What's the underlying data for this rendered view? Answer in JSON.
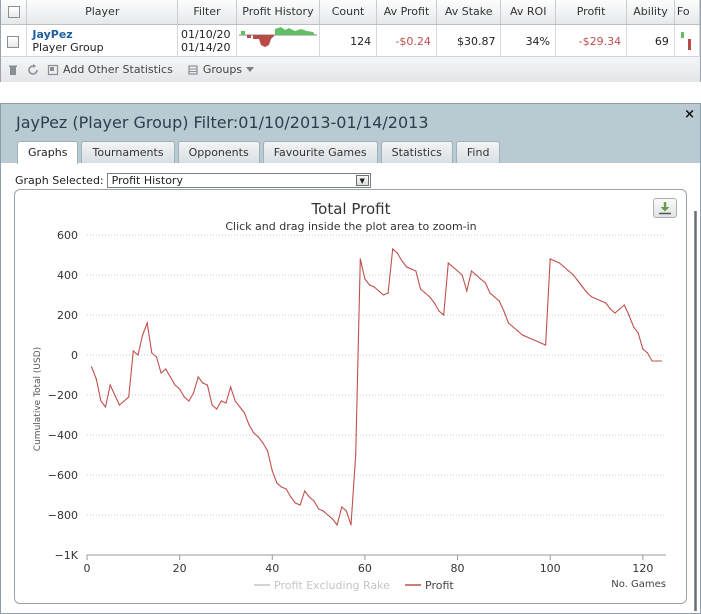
{
  "grid": {
    "headers": {
      "player": "Player",
      "filter": "Filter",
      "profit_history": "Profit History",
      "count": "Count",
      "av_profit": "Av Profit",
      "av_stake": "Av Stake",
      "av_roi": "Av ROI",
      "profit": "Profit",
      "ability": "Ability",
      "form": "Fo"
    },
    "row": {
      "player_name": "JayPez",
      "player_type": "Player Group",
      "filter_start": "01/10/20",
      "filter_end": "01/14/20",
      "count": "124",
      "av_profit": "-$0.24",
      "av_stake": "$30.87",
      "av_roi": "34%",
      "profit": "-$29.34",
      "ability": "69"
    },
    "toolbar": {
      "add_stats": "Add Other Statistics",
      "groups": "Groups"
    }
  },
  "panel": {
    "title": "JayPez (Player Group) Filter:01/10/2013-01/14/2013",
    "close_glyph": "×",
    "tabs": [
      "Graphs",
      "Tournaments",
      "Opponents",
      "Favourite Games",
      "Statistics",
      "Find"
    ],
    "active_tab": 0,
    "graph_selected_label": "Graph Selected:",
    "graph_selected_value": "Profit History",
    "select_arrow": "▼"
  },
  "colors": {
    "profit": "#c0504d",
    "profit_ex_rake": "#c5c5c5",
    "header_bg": "#b9cad3",
    "spark_green": "#63be63",
    "spark_red": "#b94a48"
  },
  "chart_data": {
    "type": "line",
    "title": "Total Profit",
    "subtitle": "Click and drag inside the plot area to zoom-in",
    "ylabel": "Cumulative Total (USD)",
    "xlabel": "No. Games",
    "xlim": [
      0,
      125
    ],
    "ylim": [
      -1000,
      600
    ],
    "yticks": [
      600,
      400,
      200,
      0,
      -200,
      -400,
      -600,
      -800,
      -1000
    ],
    "ytick_labels": [
      "600",
      "400",
      "200",
      "0",
      "−200",
      "−400",
      "−600",
      "−800",
      "−1K"
    ],
    "xticks": [
      0,
      20,
      40,
      60,
      80,
      100,
      120
    ],
    "grid": true,
    "legend_position": "bottom",
    "series": [
      {
        "name": "Profit Excluding Rake",
        "values": []
      },
      {
        "name": "Profit",
        "x": [
          1,
          2,
          3,
          4,
          5,
          6,
          7,
          8,
          9,
          10,
          11,
          12,
          13,
          14,
          15,
          16,
          17,
          18,
          19,
          20,
          21,
          22,
          23,
          24,
          25,
          26,
          27,
          28,
          29,
          30,
          31,
          32,
          33,
          34,
          35,
          36,
          37,
          38,
          39,
          40,
          41,
          42,
          43,
          44,
          45,
          46,
          47,
          48,
          49,
          50,
          51,
          52,
          53,
          54,
          55,
          56,
          57,
          58,
          59,
          60,
          61,
          62,
          63,
          64,
          65,
          66,
          67,
          68,
          69,
          70,
          71,
          72,
          73,
          74,
          75,
          76,
          77,
          78,
          79,
          80,
          81,
          82,
          83,
          84,
          85,
          86,
          87,
          88,
          89,
          90,
          91,
          92,
          93,
          94,
          95,
          96,
          97,
          98,
          99,
          100,
          101,
          102,
          103,
          104,
          105,
          106,
          107,
          108,
          109,
          110,
          111,
          112,
          113,
          114,
          115,
          116,
          117,
          118,
          119,
          120,
          121,
          122,
          123,
          124
        ],
        "y": [
          -60,
          -120,
          -230,
          -260,
          -150,
          -200,
          -250,
          -230,
          -210,
          20,
          0,
          100,
          160,
          10,
          -10,
          -90,
          -70,
          -110,
          -150,
          -170,
          -210,
          -230,
          -190,
          -110,
          -140,
          -150,
          -250,
          -270,
          -230,
          -240,
          -160,
          -230,
          -260,
          -290,
          -350,
          -390,
          -410,
          -440,
          -480,
          -580,
          -640,
          -660,
          -670,
          -710,
          -740,
          -750,
          -680,
          -710,
          -730,
          -770,
          -780,
          -800,
          -820,
          -850,
          -760,
          -780,
          -850,
          -500,
          480,
          380,
          350,
          340,
          320,
          300,
          310,
          530,
          510,
          470,
          440,
          430,
          420,
          330,
          310,
          290,
          260,
          220,
          200,
          460,
          440,
          420,
          400,
          320,
          420,
          400,
          380,
          360,
          310,
          290,
          270,
          220,
          160,
          140,
          120,
          100,
          90,
          80,
          70,
          60,
          50,
          480,
          470,
          460,
          440,
          420,
          400,
          370,
          340,
          310,
          290,
          280,
          270,
          260,
          230,
          210,
          230,
          250,
          200,
          140,
          110,
          30,
          10,
          -30,
          -30,
          -30
        ]
      }
    ]
  }
}
